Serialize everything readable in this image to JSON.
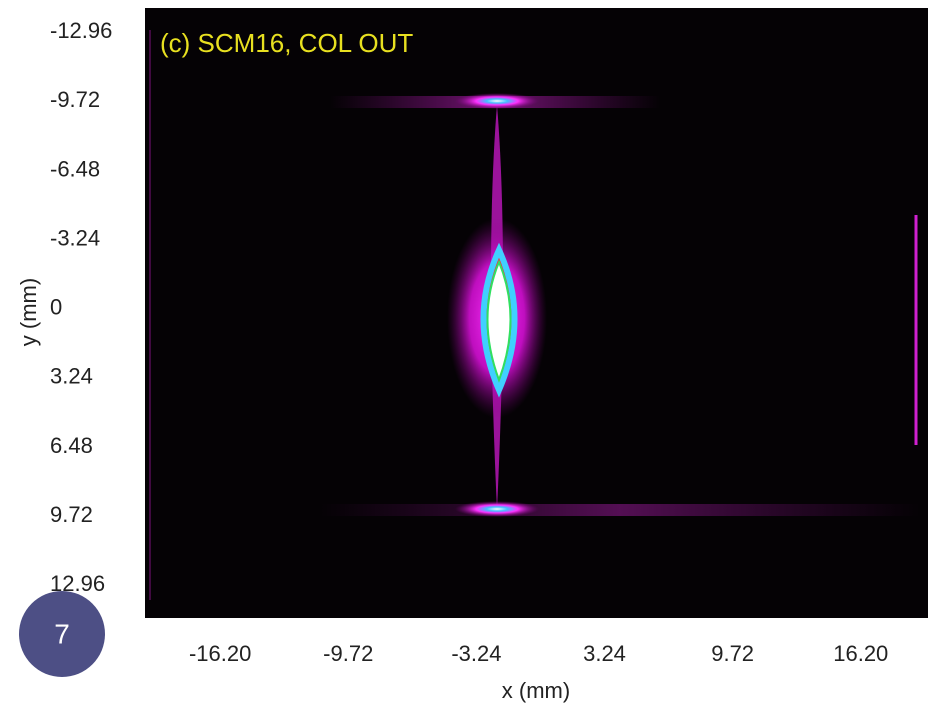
{
  "chart_data": {
    "type": "image",
    "title": "(c) SCM16, COL OUT",
    "xlabel": "x (mm)",
    "ylabel": "y (mm)",
    "xlim": [
      -20.0,
      19.6
    ],
    "ylim": [
      14.5,
      -14.1
    ],
    "xticks": [
      {
        "value": -16.2,
        "label": "-16.20"
      },
      -9.72,
      -3.24,
      3.24,
      9.72,
      {
        "value": 16.2,
        "label": "16.20"
      }
    ],
    "yticks": [
      -12.96,
      -9.72,
      -6.48,
      -3.24,
      0,
      3.24,
      6.48,
      9.72,
      12.96
    ]
  },
  "slide_number": "7"
}
